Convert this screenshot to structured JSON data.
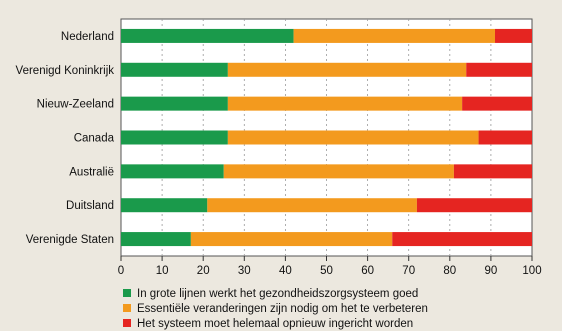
{
  "chart_data": {
    "type": "bar",
    "stacked": true,
    "orientation": "horizontal",
    "categories": [
      "Nederland",
      "Verenigd Koninkrijk",
      "Nieuw-Zeeland",
      "Canada",
      "Australië",
      "Duitsland",
      "Verenigde Staten"
    ],
    "series": [
      {
        "name": "In grote lijnen werkt het gezondheidszorgsysteem goed",
        "color": "#1a9a4b",
        "values": [
          42,
          26,
          26,
          26,
          25,
          21,
          17
        ]
      },
      {
        "name": "Essentiële veranderingen zijn nodig om het te verbeteren",
        "color": "#f39a1e",
        "values": [
          49,
          58,
          57,
          61,
          56,
          51,
          49
        ]
      },
      {
        "name": "Het systeem moet helemaal opnieuw ingericht worden",
        "color": "#e52521",
        "values": [
          9,
          16,
          17,
          13,
          19,
          28,
          34
        ]
      }
    ],
    "xlim": [
      0,
      100
    ],
    "xticks": [
      0,
      10,
      20,
      30,
      40,
      50,
      60,
      70,
      80,
      90,
      100
    ],
    "grid": true,
    "legend_position": "bottom"
  }
}
